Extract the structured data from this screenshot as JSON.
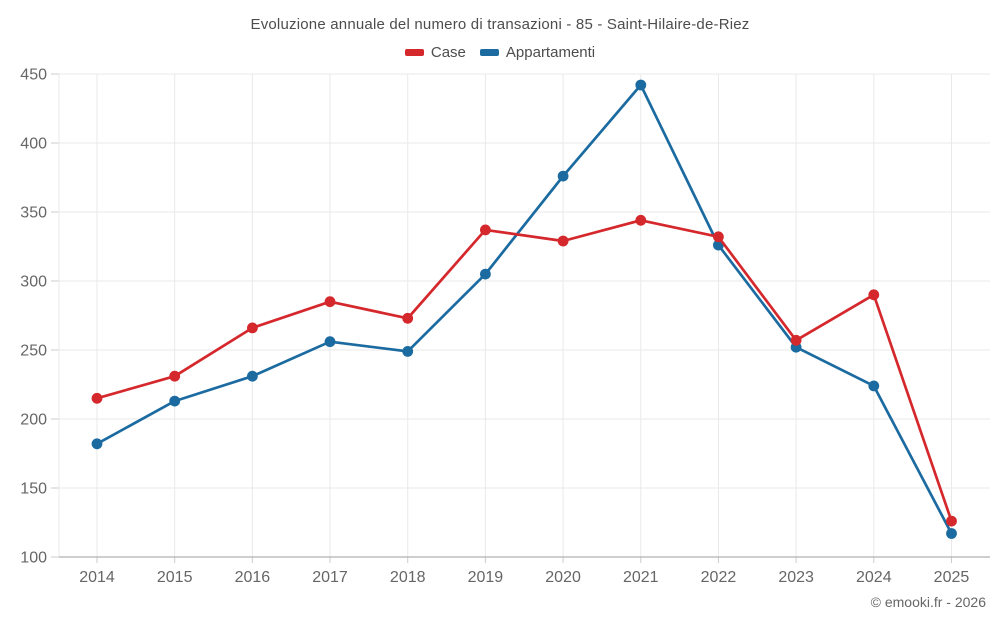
{
  "title": "Evoluzione annuale del numero di transazioni - 85 - Saint-Hilaire-de-Riez",
  "footer": {
    "credit": "© emooki.fr - 2026"
  },
  "chart_data": {
    "type": "line",
    "title": "Evoluzione annuale del numero di transazioni - 85 - Saint-Hilaire-de-Riez",
    "x": [
      2014,
      2015,
      2016,
      2017,
      2018,
      2019,
      2020,
      2021,
      2022,
      2023,
      2024,
      2025
    ],
    "series": [
      {
        "name": "Case",
        "color": "#d5282d",
        "values": [
          215,
          231,
          266,
          285,
          273,
          337,
          329,
          344,
          332,
          257,
          290,
          126
        ]
      },
      {
        "name": "Appartamenti",
        "color": "#1b6ba1",
        "values": [
          182,
          213,
          231,
          256,
          249,
          305,
          376,
          442,
          326,
          252,
          224,
          117
        ]
      }
    ],
    "xlabel": "",
    "ylabel": "",
    "ylim": [
      100,
      450
    ],
    "ytick_step": 50,
    "grid": true,
    "legend_position": "top"
  },
  "colors": {
    "grid": "#e9e9e9",
    "axis": "#b0b0b0",
    "tick": "#cccccc",
    "tick_label": "#666666",
    "title_text": "#4d4d4d"
  }
}
